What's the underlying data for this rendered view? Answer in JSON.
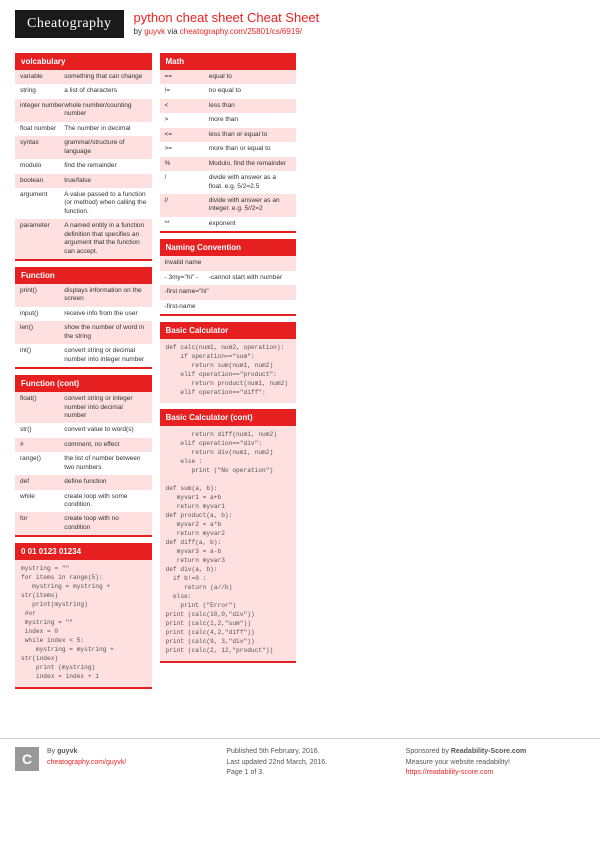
{
  "header": {
    "logo": "Cheatography",
    "title": "python cheat sheet Cheat Sheet",
    "by": "by ",
    "author": "guyvk",
    "via": " via ",
    "url": "cheatography.com/25801/cs/6919/"
  },
  "colors": {
    "accent": "#e62020",
    "alt_bg": "#fde0df"
  },
  "boxes": [
    {
      "title": "volcabulary",
      "type": "table",
      "bottom_border": true,
      "rows": [
        [
          "variable",
          "something that can change"
        ],
        [
          "string",
          "a list of characters"
        ],
        [
          "integer number",
          "whole number/counting number"
        ],
        [
          "float number",
          "The number in decimal"
        ],
        [
          "syntax",
          "grammar/structure of language"
        ],
        [
          "modulo",
          "find the remainder"
        ],
        [
          "boolean",
          "true/false"
        ],
        [
          "argument",
          "A value passed to a function (or method) when calling the function."
        ],
        [
          "parameter",
          "A named entity in a function definition that specifies an argument that the function can accept."
        ]
      ]
    },
    {
      "title": "Function",
      "type": "table",
      "bottom_border": true,
      "rows": [
        [
          "print()",
          "displays information on the screen"
        ],
        [
          "input()",
          "receive info from the user"
        ],
        [
          "len()",
          "show the number of word in the string"
        ],
        [
          "int()",
          "convert string or decimal number into integer number"
        ]
      ]
    },
    {
      "title": "Function (cont)",
      "type": "table",
      "bottom_border": true,
      "rows": [
        [
          "float()",
          "convert string or integer number into decimal number"
        ],
        [
          "str()",
          "convert value to word(s)"
        ],
        [
          "#",
          "comment, no effect"
        ],
        [
          "range()",
          "the list of number between two numbers"
        ],
        [
          "def",
          "define function"
        ],
        [
          "while",
          "create loop with some condition."
        ],
        [
          "for",
          "create loop with no condition"
        ]
      ]
    },
    {
      "title": "0 01 0123 01234",
      "type": "code",
      "bottom_border": true,
      "code": "mystring = \"\"\nfor items in range(5):\n   mystring = mystring + str(items)\n   print(mystring)\n #or\n mystring = \"\"\n index = 0\n while index < 5:\n    mystring = mystring + str(index)\n    print (mystring)\n    index = index + 1"
    },
    {
      "title": "Math",
      "type": "table",
      "bottom_border": true,
      "rows": [
        [
          "==",
          "equal to"
        ],
        [
          "!=",
          "no equal to"
        ],
        [
          "<",
          "less than"
        ],
        [
          ">",
          "more than"
        ],
        [
          "<=",
          "less than or equal to"
        ],
        [
          ">=",
          "more than or equal to"
        ],
        [
          "%",
          "Modulo, find the remainder"
        ],
        [
          "/",
          "divide with answer as a float. e.g. 5/2=2.5"
        ],
        [
          "//",
          "divide with answer as an integer. e.g. 5//2=2"
        ],
        [
          "**",
          "exponent"
        ]
      ]
    },
    {
      "title": "Naming Convention",
      "type": "table",
      "bottom_border": true,
      "rows": [
        [
          "Invalid name",
          ""
        ],
        [
          "-\n3my=\"hi\"\n-",
          "-cannot start with number"
        ],
        [
          "-first name=\"hi\"",
          ""
        ],
        [
          "-first-name",
          ""
        ]
      ]
    },
    {
      "title": "Basic Calculator",
      "type": "code",
      "bottom_border": false,
      "code": "def calc(num1, num2, operation):\n    if operation==\"sum\":\n       return sum(num1, num2)\n    elif operation==\"product\":\n       return product(num1, num2)\n    elif operation==\"diff\":"
    },
    {
      "title": "Basic Calculator (cont)",
      "type": "code",
      "bottom_border": true,
      "code": "       return diff(num1, num2)\n    elif operation==\"div\":\n       return div(num1, num2)\n    else :\n       print (\"No operation\")\n\ndef sum(a, b):\n   myvar1 = a+b\n   return myvar1\ndef product(a, b):\n   myvar2 = a*b\n   return myvar2\ndef diff(a, b):\n   myvar3 = a-b\n   return myvar3\ndef div(a, b):\n  if b!=0 :\n     return (a//b)\n  else:\n    print (\"Error\")\nprint (calc(10,0,\"div\"))\nprint (calc(1,2,\"sum\"))\nprint (calc(4,2,\"diff\"))\nprint (calc(9, 3,\"div\"))\nprint (calc(2, 12,\"product\"))"
    }
  ],
  "footer": {
    "avatar": "C",
    "by": "By ",
    "author": "guyvk",
    "author_url": "cheatography.com/guyvk/",
    "published": "Published 5th February, 2016.",
    "updated": "Last updated 22nd March, 2016.",
    "page": "Page 1 of 3.",
    "sponsor_prefix": "Sponsored by ",
    "sponsor": "Readability-Score.com",
    "sponsor_line": "Measure your website readability!",
    "sponsor_url": "https://readability-score.com"
  }
}
